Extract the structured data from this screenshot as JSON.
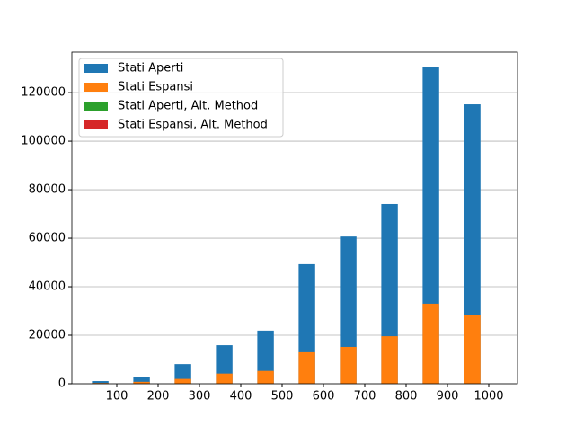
{
  "chart_data": {
    "type": "bar",
    "x": [
      60,
      160,
      260,
      360,
      460,
      560,
      660,
      760,
      860,
      960
    ],
    "series": [
      {
        "name": "Stati Aperti",
        "color": "#1f77b4",
        "values": [
          1100,
          2600,
          8100,
          15900,
          21900,
          49300,
          60700,
          74100,
          130400,
          115200
        ]
      },
      {
        "name": "Stati Espansi",
        "color": "#ff7f0e",
        "values": [
          300,
          800,
          2000,
          4200,
          5300,
          13000,
          15200,
          19600,
          33000,
          28500
        ]
      },
      {
        "name": "Stati Aperti, Alt. Method",
        "color": "#2ca02c",
        "values": [
          0,
          0,
          0,
          0,
          0,
          0,
          0,
          0,
          0,
          0
        ]
      },
      {
        "name": "Stati Espansi, Alt. Method",
        "color": "#d62728",
        "values": [
          0,
          0,
          0,
          0,
          0,
          0,
          0,
          0,
          0,
          0
        ]
      }
    ],
    "xlim": [
      -8.7,
      1069.6
    ],
    "xticks": [
      100,
      200,
      300,
      400,
      500,
      600,
      700,
      800,
      900,
      1000
    ],
    "ylim": [
      0,
      136700
    ],
    "yticks": [
      0,
      20000,
      40000,
      60000,
      80000,
      100000,
      120000
    ],
    "grid": true,
    "legend": "upper left"
  }
}
